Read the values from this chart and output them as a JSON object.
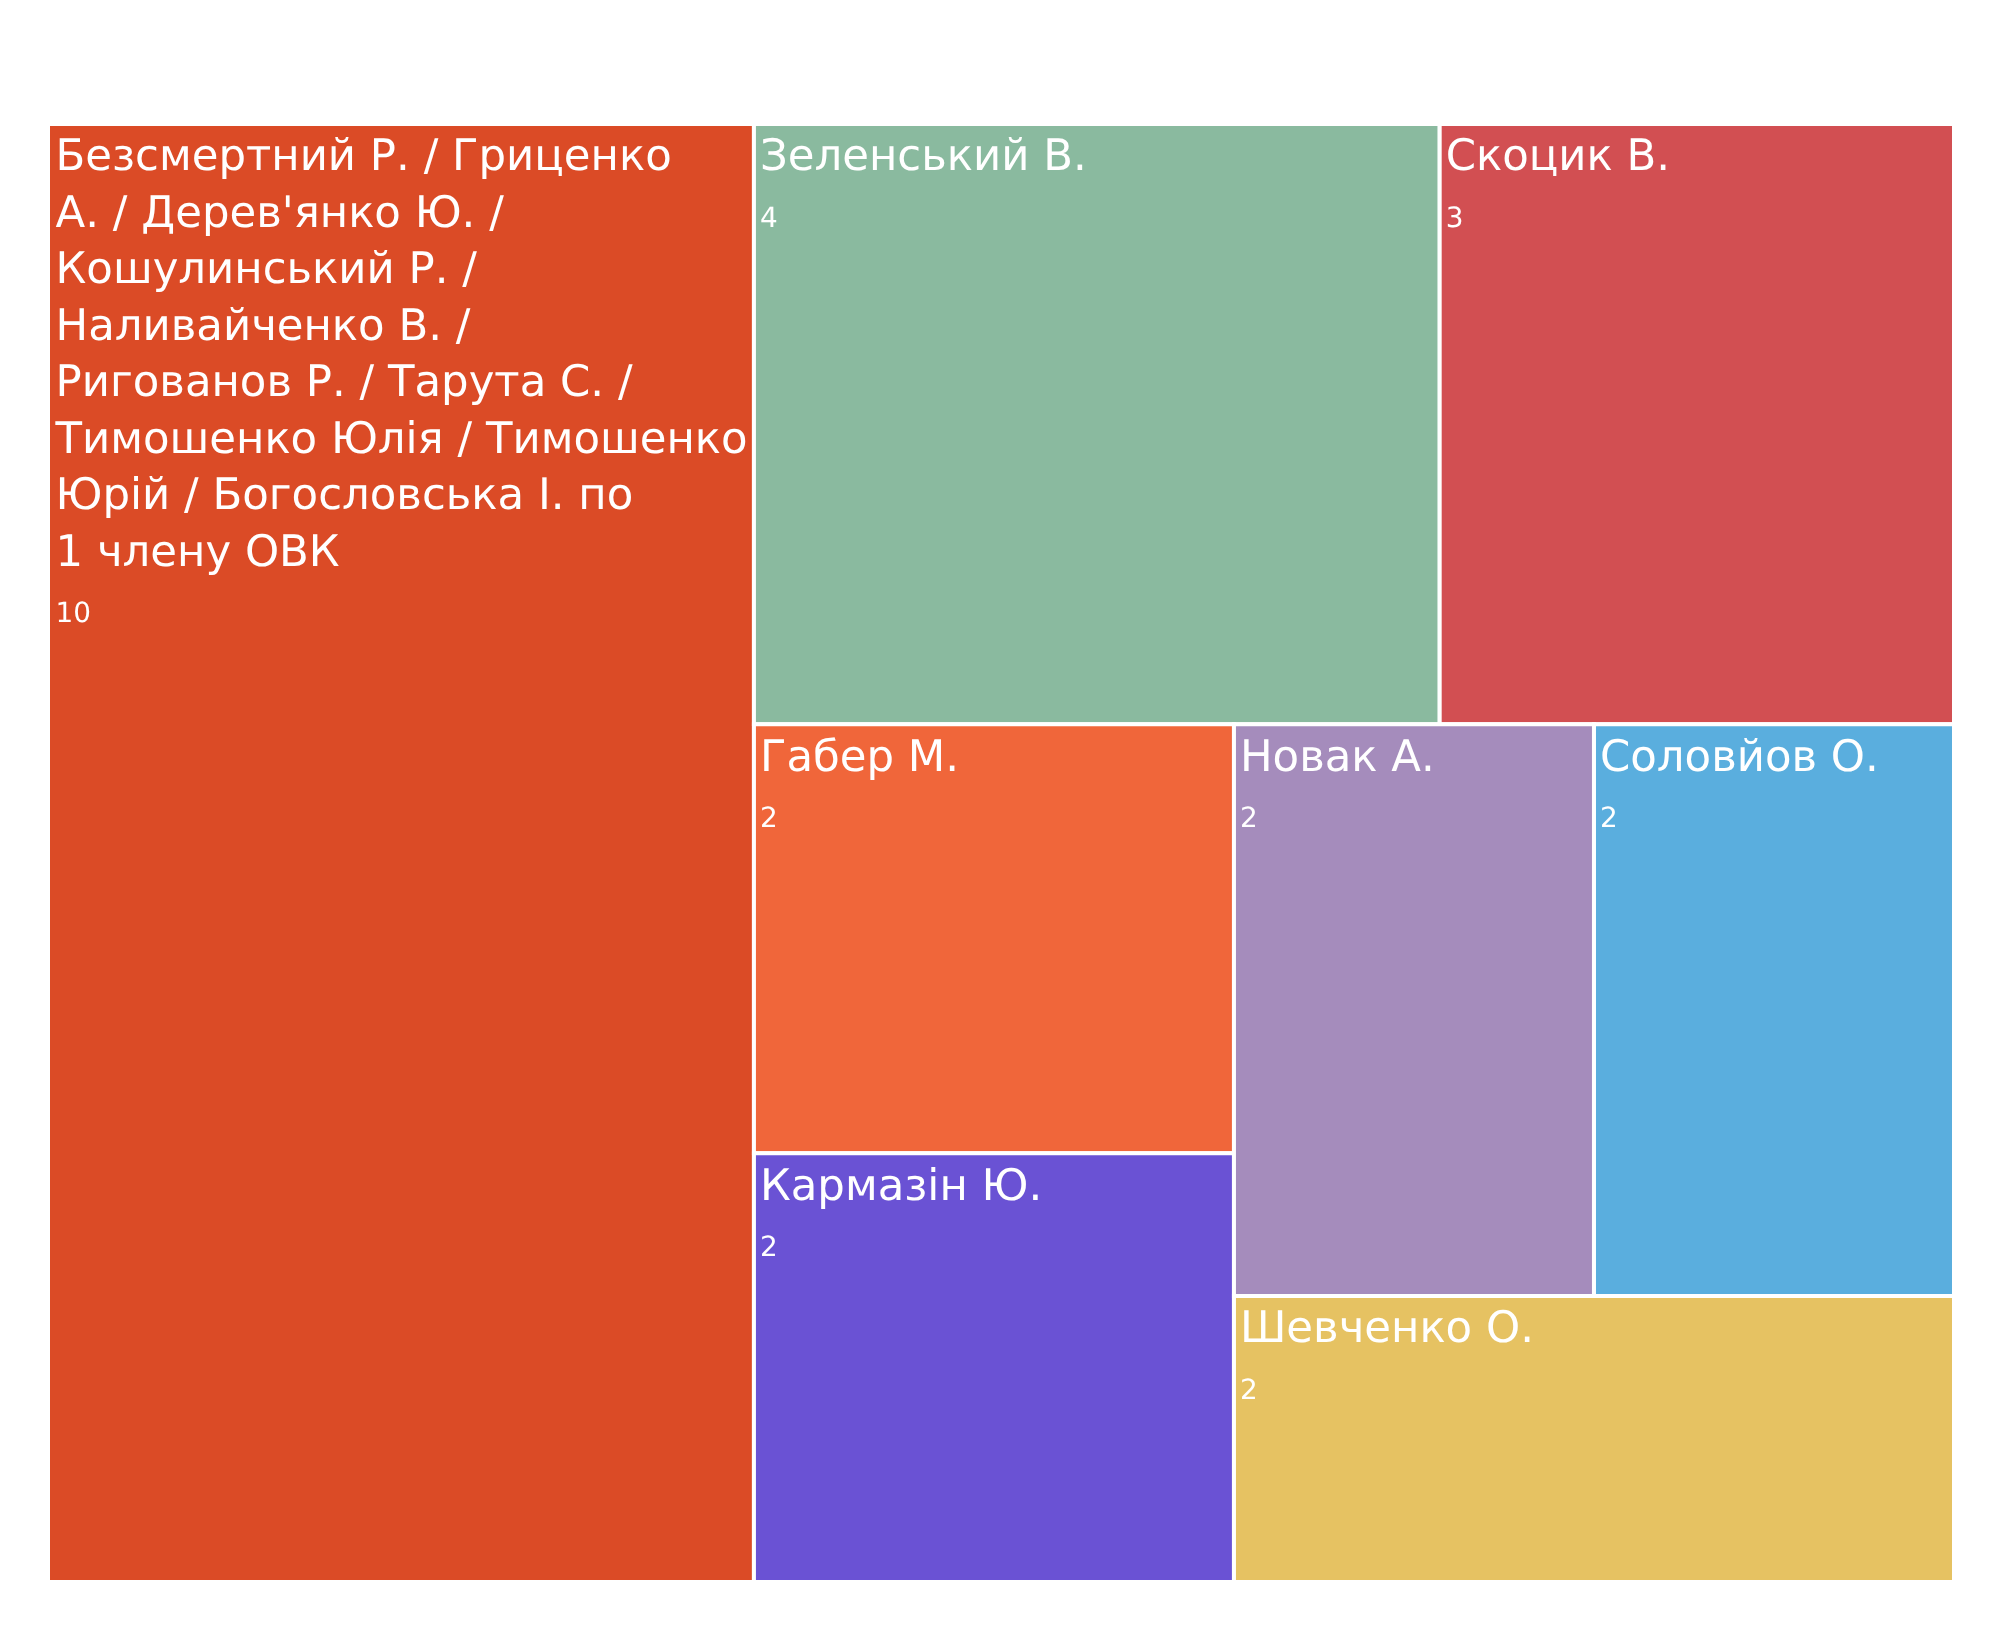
{
  "chart_data": {
    "type": "other",
    "categories": [
      "Безсмертний Р. / Гриценко А. / Дерев'янко Ю. / Кошулинський Р. / Наливайченко В. / Ригованов Р. / Тарута С. / Тимошенко Юлія / Тимошенко Юрій / Богословська І. по 1 члену ОВК",
      "Зеленський В.",
      "Скоцик В.",
      "Габер М.",
      "Кармазін Ю.",
      "Новак А.",
      "Соловйов О.",
      "Шевченко О."
    ],
    "values": [
      10,
      4,
      3,
      2,
      2,
      2,
      2,
      2
    ],
    "data_labels": true,
    "colors": [
      "#db4b26",
      "#8aba9f",
      "#d24f52",
      "#f0663a",
      "#6a52d4",
      "#a58cbc",
      "#5aaede",
      "#e6c262"
    ]
  }
}
